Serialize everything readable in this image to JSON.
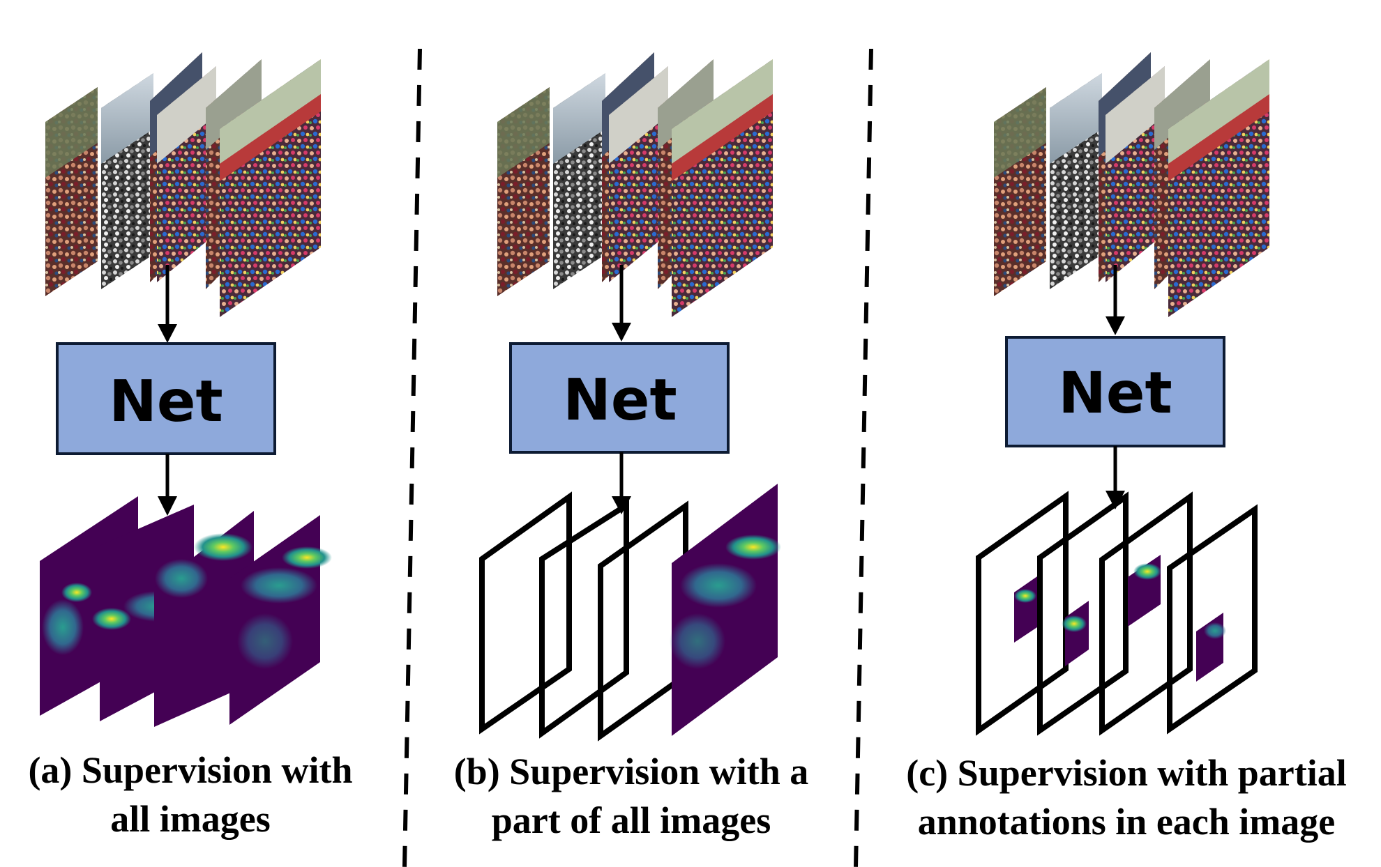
{
  "net_label": "Net",
  "colors": {
    "net_fill": "#8EA9DB",
    "net_stroke": "#0d1b33",
    "heatmap_low": "#440154",
    "heatmap_mid": "#21918c",
    "heatmap_high": "#fde725",
    "frame": "#000000",
    "divider": "#000000"
  },
  "panels": [
    {
      "id": "a",
      "caption_line1": "(a) Supervision with",
      "caption_line2": "all images",
      "input": "crowd image stack",
      "output": "density maps for all images"
    },
    {
      "id": "b",
      "caption_line1": "(b) Supervision with a",
      "caption_line2": "part of all images",
      "input": "crowd image stack",
      "output": "empty frames plus one density map"
    },
    {
      "id": "c",
      "caption_line1": "(c) Supervision with partial",
      "caption_line2": "annotations in each image",
      "input": "crowd image stack",
      "output": "frames with partial density patches"
    }
  ]
}
